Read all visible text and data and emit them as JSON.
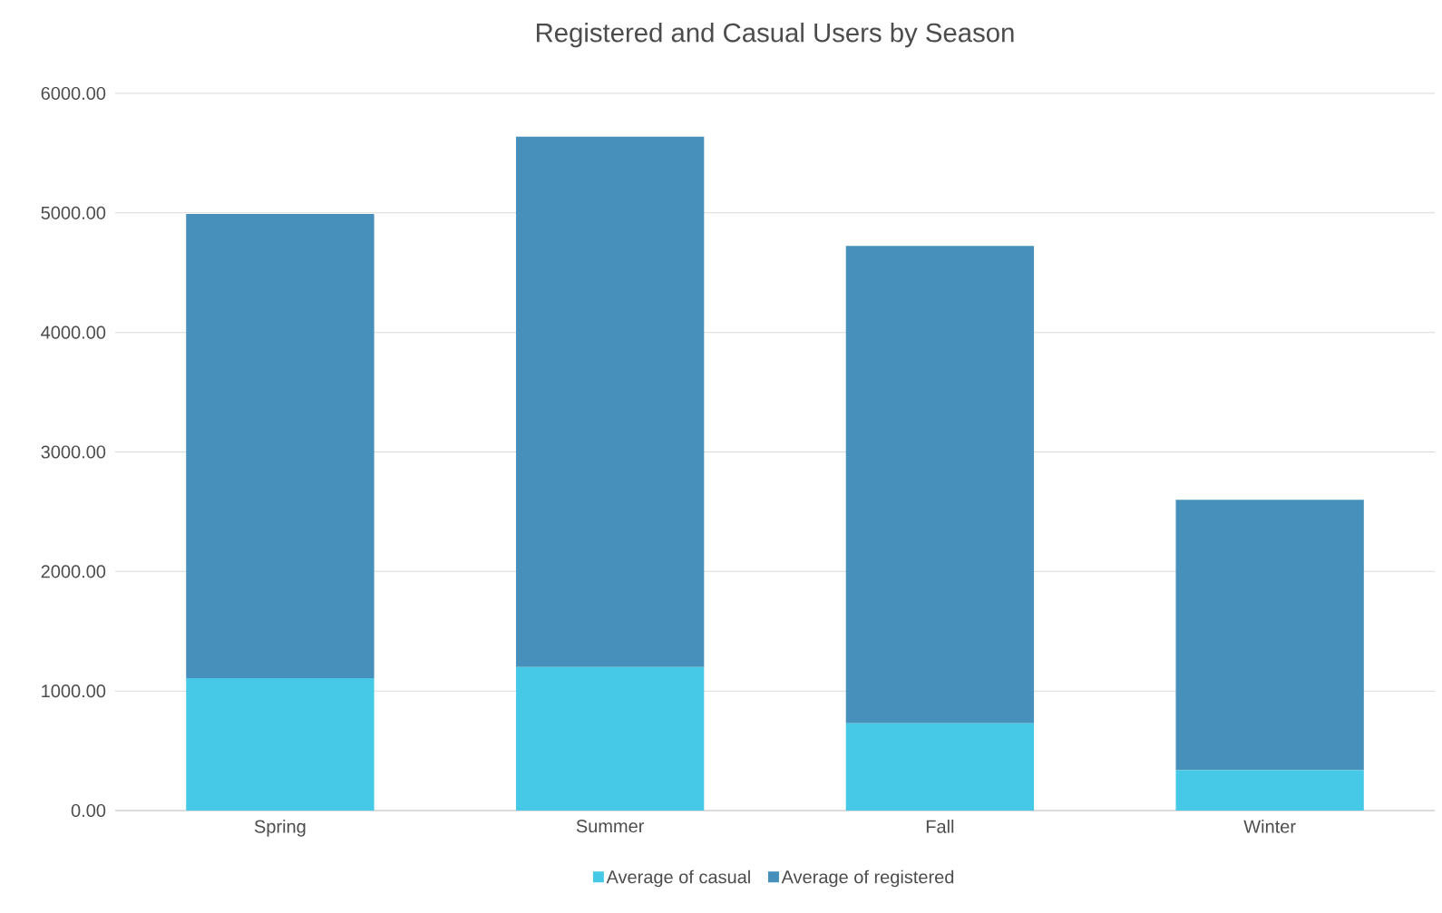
{
  "chart_data": {
    "type": "bar",
    "title": "Registered and Casual Users by Season",
    "stacked": true,
    "categories": [
      "Spring",
      "Summer",
      "Fall",
      "Winter"
    ],
    "series": [
      {
        "name": "Average of casual",
        "color": "#46c9e7",
        "values": [
          1108,
          1200,
          731,
          338
        ]
      },
      {
        "name": "Average of registered",
        "color": "#4690bb",
        "values": [
          3884,
          4438,
          3992,
          2262
        ]
      }
    ],
    "ylim": [
      0,
      6000
    ],
    "yticks": [
      {
        "value": 0,
        "label": "0.00"
      },
      {
        "value": 1000,
        "label": "1000.00"
      },
      {
        "value": 2000,
        "label": "2000.00"
      },
      {
        "value": 3000,
        "label": "3000.00"
      },
      {
        "value": 4000,
        "label": "4000.00"
      },
      {
        "value": 5000,
        "label": "5000.00"
      },
      {
        "value": 6000,
        "label": "6000.00"
      }
    ],
    "grid": "y",
    "legend": "bottom"
  }
}
